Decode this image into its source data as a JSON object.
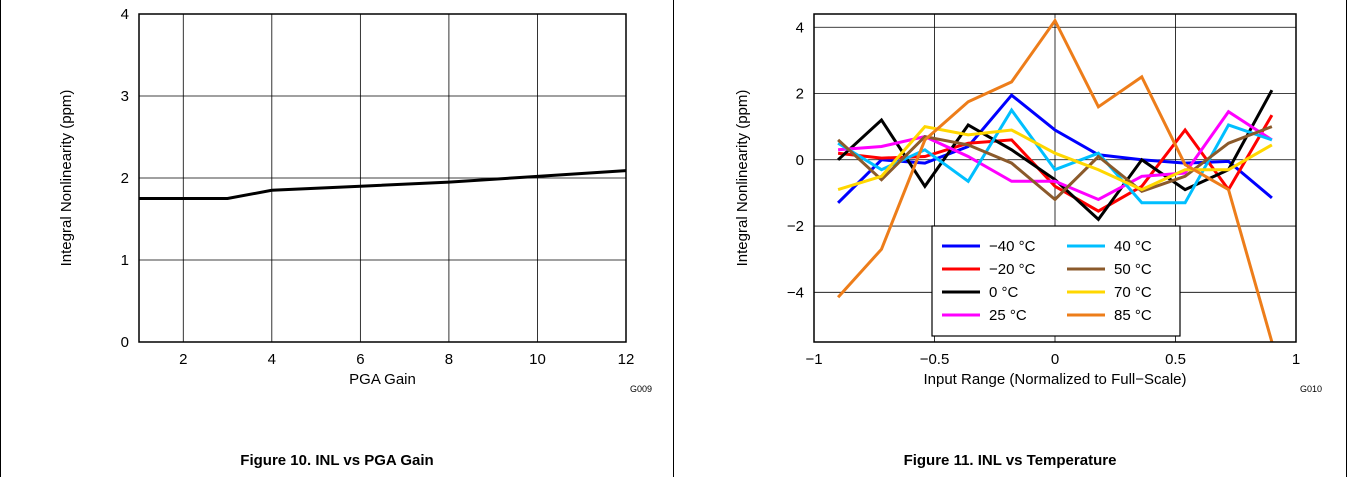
{
  "chart_data": [
    {
      "type": "line",
      "caption": "Figure 10. INL vs PGA Gain",
      "code": "G009",
      "xlabel": "PGA Gain",
      "ylabel": "Integral Nonlinearity (ppm)",
      "xlim": [
        1,
        12
      ],
      "ylim": [
        0,
        4
      ],
      "xticks": [
        2,
        4,
        6,
        8,
        10,
        12
      ],
      "yticks": [
        0,
        1,
        2,
        3,
        4
      ],
      "grid": true,
      "series": [
        {
          "color": "#000000",
          "x": [
            1,
            3,
            4,
            6,
            8,
            10,
            12
          ],
          "y": [
            1.75,
            1.75,
            1.85,
            1.9,
            1.95,
            2.02,
            2.09
          ]
        }
      ]
    },
    {
      "type": "line",
      "caption": "Figure 11. INL vs Temperature",
      "code": "G010",
      "xlabel": "Input Range (Normalized to Full−Scale)",
      "ylabel": "Integral Nonlinearity (ppm)",
      "xlim": [
        -1,
        1
      ],
      "ylim": [
        -5.5,
        4.4
      ],
      "xticks": [
        "−1",
        "−0.5",
        "0",
        "0.5",
        "1"
      ],
      "yticks": [
        "−4",
        "−2",
        "0",
        "2",
        "4"
      ],
      "grid": true,
      "legend_position": "lower-center",
      "x": [
        -0.9,
        -0.72,
        -0.54,
        -0.36,
        -0.18,
        0,
        0.18,
        0.36,
        0.54,
        0.72,
        0.9
      ],
      "series": [
        {
          "name": "−40 °C",
          "color": "#0000ff",
          "y": [
            -1.3,
            0.0,
            -0.1,
            0.4,
            1.95,
            0.9,
            0.15,
            0.0,
            -0.1,
            -0.05,
            -1.15
          ]
        },
        {
          "name": "−20 °C",
          "color": "#ff0000",
          "y": [
            0.2,
            0.05,
            0.1,
            0.5,
            0.6,
            -0.8,
            -1.55,
            -0.8,
            0.9,
            -0.9,
            1.35
          ]
        },
        {
          "name": "0 °C",
          "color": "#000000",
          "y": [
            0.0,
            1.2,
            -0.8,
            1.05,
            0.3,
            -0.6,
            -1.8,
            0.0,
            -0.9,
            -0.3,
            2.1
          ]
        },
        {
          "name": "25 °C",
          "color": "#ff00ff",
          "y": [
            0.3,
            0.4,
            0.7,
            0.1,
            -0.65,
            -0.65,
            -1.2,
            -0.5,
            -0.4,
            1.45,
            0.6
          ]
        },
        {
          "name": "40 °C",
          "color": "#00bfff",
          "y": [
            0.5,
            -0.3,
            0.3,
            -0.65,
            1.5,
            -0.3,
            0.2,
            -1.3,
            -1.3,
            1.05,
            0.6
          ]
        },
        {
          "name": "50 °C",
          "color": "#8b5a2b",
          "y": [
            0.6,
            -0.6,
            0.7,
            0.45,
            -0.1,
            -1.2,
            0.1,
            -0.95,
            -0.5,
            0.5,
            1.0
          ]
        },
        {
          "name": "70 °C",
          "color": "#ffd700",
          "y": [
            -0.9,
            -0.5,
            1.0,
            0.75,
            0.9,
            0.2,
            -0.3,
            -0.9,
            -0.3,
            -0.3,
            0.45
          ]
        },
        {
          "name": "85 °C",
          "color": "#ed7d1a",
          "y": [
            -4.15,
            -2.7,
            0.6,
            1.75,
            2.35,
            4.2,
            1.6,
            2.5,
            -0.15,
            -0.9,
            -5.5
          ]
        }
      ]
    }
  ]
}
